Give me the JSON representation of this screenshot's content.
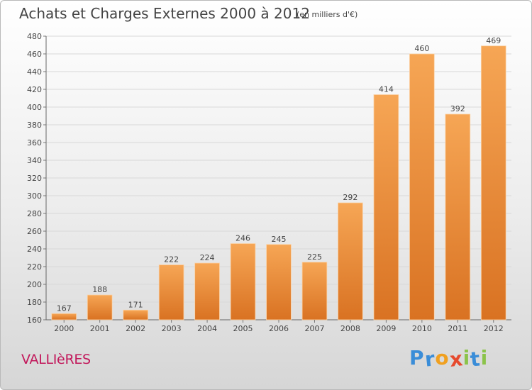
{
  "title": "Achats et Charges Externes 2000 à 2012",
  "subtitle": "(en milliers d'€)",
  "place": "VALLIèRES",
  "logo": {
    "letters": [
      "P",
      "r",
      "o",
      "x",
      "i",
      "t",
      "i"
    ],
    "colors": [
      "#3a8dd8",
      "#3a8dd8",
      "#f0a020",
      "#e64a2e",
      "#8bc34a",
      "#3a8dd8",
      "#8bc34a"
    ]
  },
  "colors": {
    "bar_light": "#f6a655",
    "bar_dark": "#d97222",
    "grid": "#d8d8d8",
    "text": "#444444"
  },
  "chart_data": {
    "type": "bar",
    "categories": [
      "2000",
      "2001",
      "2002",
      "2003",
      "2004",
      "2005",
      "2006",
      "2007",
      "2008",
      "2009",
      "2010",
      "2011",
      "2012"
    ],
    "values": [
      167,
      188,
      171,
      222,
      224,
      246,
      245,
      225,
      292,
      414,
      460,
      392,
      469
    ],
    "ylim": [
      160,
      480
    ],
    "yticks": [
      160,
      180,
      200,
      220,
      240,
      260,
      280,
      300,
      320,
      340,
      360,
      380,
      400,
      420,
      440,
      460,
      480
    ],
    "grid": true,
    "data_labels": true
  }
}
